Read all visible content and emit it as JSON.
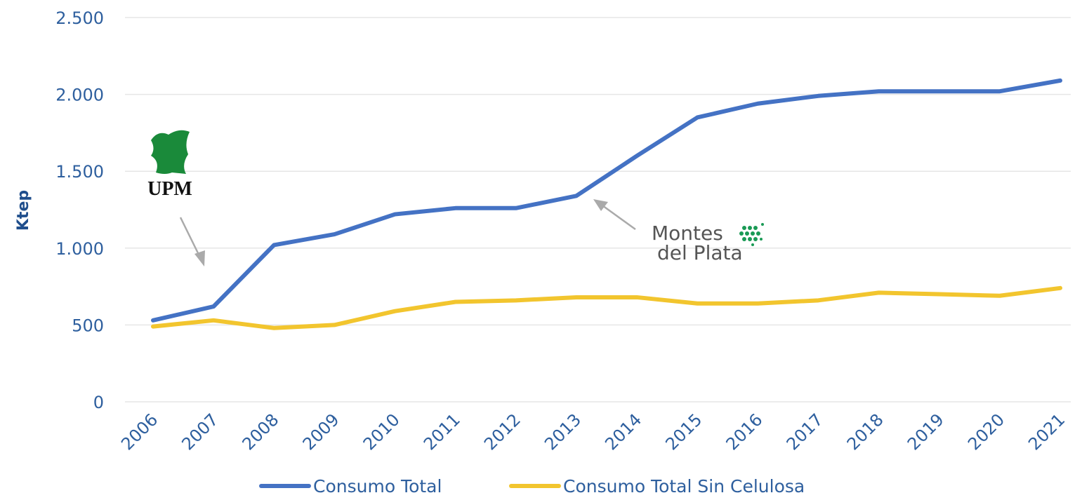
{
  "chart_data": {
    "type": "line",
    "y_label": "Ktep",
    "categories": [
      "2006",
      "2007",
      "2008",
      "2009",
      "2010",
      "2011",
      "2012",
      "2013",
      "2014",
      "2015",
      "2016",
      "2017",
      "2018",
      "2019",
      "2020",
      "2021"
    ],
    "series": [
      {
        "name": "Consumo Total",
        "color": "#4472c4",
        "values": [
          530,
          620,
          1020,
          1090,
          1220,
          1260,
          1260,
          1340,
          1600,
          1850,
          1940,
          1990,
          2020,
          2020,
          2020,
          2090
        ]
      },
      {
        "name": "Consumo Total Sin Celulosa",
        "color": "#f2c52e",
        "values": [
          490,
          530,
          480,
          500,
          590,
          650,
          660,
          680,
          680,
          640,
          640,
          660,
          710,
          700,
          690,
          740
        ]
      }
    ],
    "ylim": [
      0,
      2500
    ],
    "yticks": [
      0,
      500,
      {
        "value": 1000,
        "label": "1.000"
      },
      {
        "value": 1500,
        "label": "1.500"
      },
      {
        "value": 2000,
        "label": "2.000"
      },
      {
        "value": 2500,
        "label": "2.500"
      }
    ],
    "grid": true,
    "legend": "bottom",
    "annotations": [
      "UPM",
      "Montes",
      "del Plata"
    ]
  }
}
